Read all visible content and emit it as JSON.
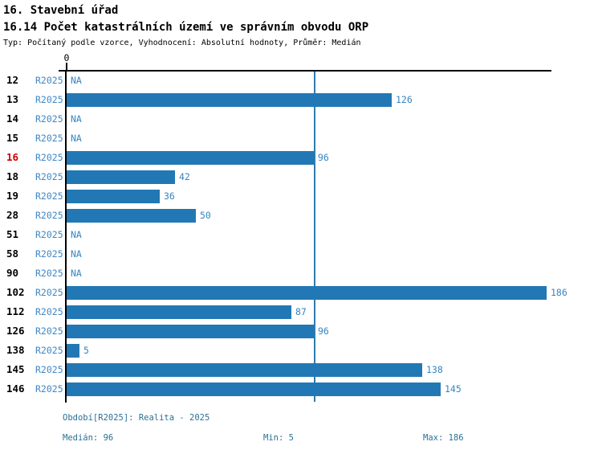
{
  "header": {
    "section_title": "16. Stavební úřad",
    "indicator_title": "16.14 Počet katastrálních území ve správním obvodu ORP",
    "subtitle": "Typ: Počítaný podle vzorce, Vyhodnocení: Absolutní hodnoty, Průměr: Medián"
  },
  "chart_data": {
    "type": "bar",
    "orientation": "horizontal",
    "title": "16.14 Počet katastrálních území ve správním obvodu ORP",
    "axis_zero_label": "0",
    "period_label": "R2025",
    "na_label": "NA",
    "categories": [
      "12",
      "13",
      "14",
      "15",
      "16",
      "18",
      "19",
      "28",
      "51",
      "58",
      "90",
      "102",
      "112",
      "126",
      "138",
      "145",
      "146"
    ],
    "values": [
      null,
      126,
      null,
      null,
      96,
      42,
      36,
      50,
      null,
      null,
      null,
      186,
      87,
      96,
      5,
      138,
      145
    ],
    "highlighted_category": "16",
    "xlim": [
      0,
      188
    ],
    "median": 96,
    "min": 5,
    "max": 186,
    "grid": false,
    "colors": {
      "bar": "#2278b4",
      "label_blue": "#3585c2",
      "period_blue": "#3f87c5",
      "median_line": "#2e7cb0",
      "highlight_red": "#cc0000",
      "axis_black": "#000000",
      "footer_teal": "#2b7194"
    }
  },
  "footer": {
    "period_line": "Období[R2025]: Realita - 2025",
    "median_label": "Medián: 96",
    "min_label": "Min: 5",
    "max_label": "Max: 186"
  }
}
